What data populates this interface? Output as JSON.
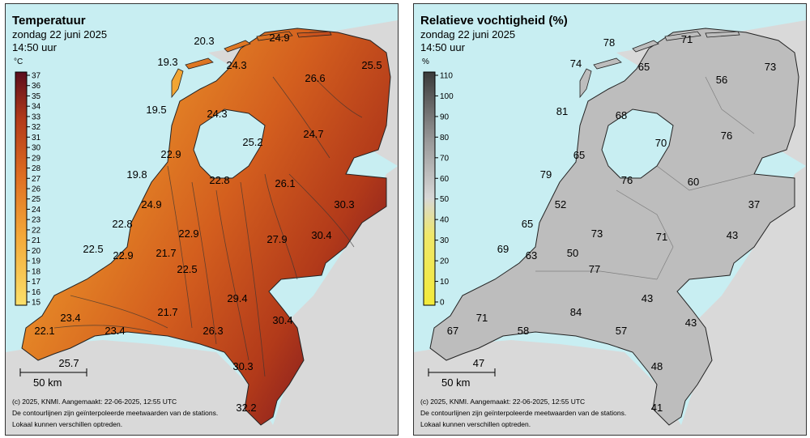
{
  "temperature": {
    "title": "Temperatuur",
    "date": "zondag 22 juni 2025",
    "time": "14:50 uur",
    "unit": "°C",
    "legend_ticks": [
      "37",
      "36",
      "35",
      "34",
      "33",
      "32",
      "31",
      "30",
      "29",
      "28",
      "27",
      "26",
      "25",
      "24",
      "23",
      "22",
      "21",
      "20",
      "19",
      "18",
      "17",
      "16",
      "15"
    ],
    "values": [
      "20.3",
      "24.9",
      "19.3",
      "24.3",
      "25.5",
      "26.6",
      "19.5",
      "24.3",
      "25.2",
      "24.7",
      "22.9",
      "19.8",
      "22.8",
      "26.1",
      "24.9",
      "30.3",
      "22.8",
      "22.9",
      "27.9",
      "30.4",
      "22.5",
      "22.9",
      "21.7",
      "22.5",
      "29.4",
      "21.7",
      "23.4",
      "30.4",
      "22.1",
      "23.4",
      "26.3",
      "25.7",
      "30.3",
      "32.2"
    ],
    "scale_label": "50 km",
    "credit1": "(c) 2025, KNMI. Aangemaakt: 22-06-2025, 12:55 UTC",
    "credit2": "De contourlijnen zijn geïnterpoleerde meetwaarden van de stations.",
    "credit3": "Lokaal kunnen verschillen optreden.",
    "colors": {
      "low": "#f7d154",
      "mid": "#e07a22",
      "high": "#6b1220"
    }
  },
  "humidity": {
    "title": "Relatieve vochtigheid (%)",
    "date": "zondag 22 juni 2025",
    "time": "14:50 uur",
    "unit": "%",
    "legend_ticks": [
      "110",
      "100",
      "90",
      "80",
      "70",
      "60",
      "50",
      "40",
      "30",
      "20",
      "10",
      "0"
    ],
    "values": [
      "78",
      "71",
      "74",
      "65",
      "73",
      "56",
      "81",
      "68",
      "70",
      "76",
      "65",
      "79",
      "76",
      "60",
      "52",
      "37",
      "65",
      "73",
      "43",
      "69",
      "63",
      "71",
      "50",
      "77",
      "43",
      "84",
      "43",
      "71",
      "67",
      "58",
      "57",
      "47",
      "48",
      "41"
    ],
    "scale_label": "50 km",
    "credit1": "(c) 2025, KNMI. Aangemaakt: 22-06-2025, 12:55 UTC",
    "credit2": "De contourlijnen zijn geïnterpoleerde meetwaarden van de stations.",
    "credit3": "Lokaal kunnen verschillen optreden.",
    "colors": {
      "low": "#f2ea3a",
      "mid": "#c9c9c9",
      "high": "#4a4a4a"
    }
  }
}
